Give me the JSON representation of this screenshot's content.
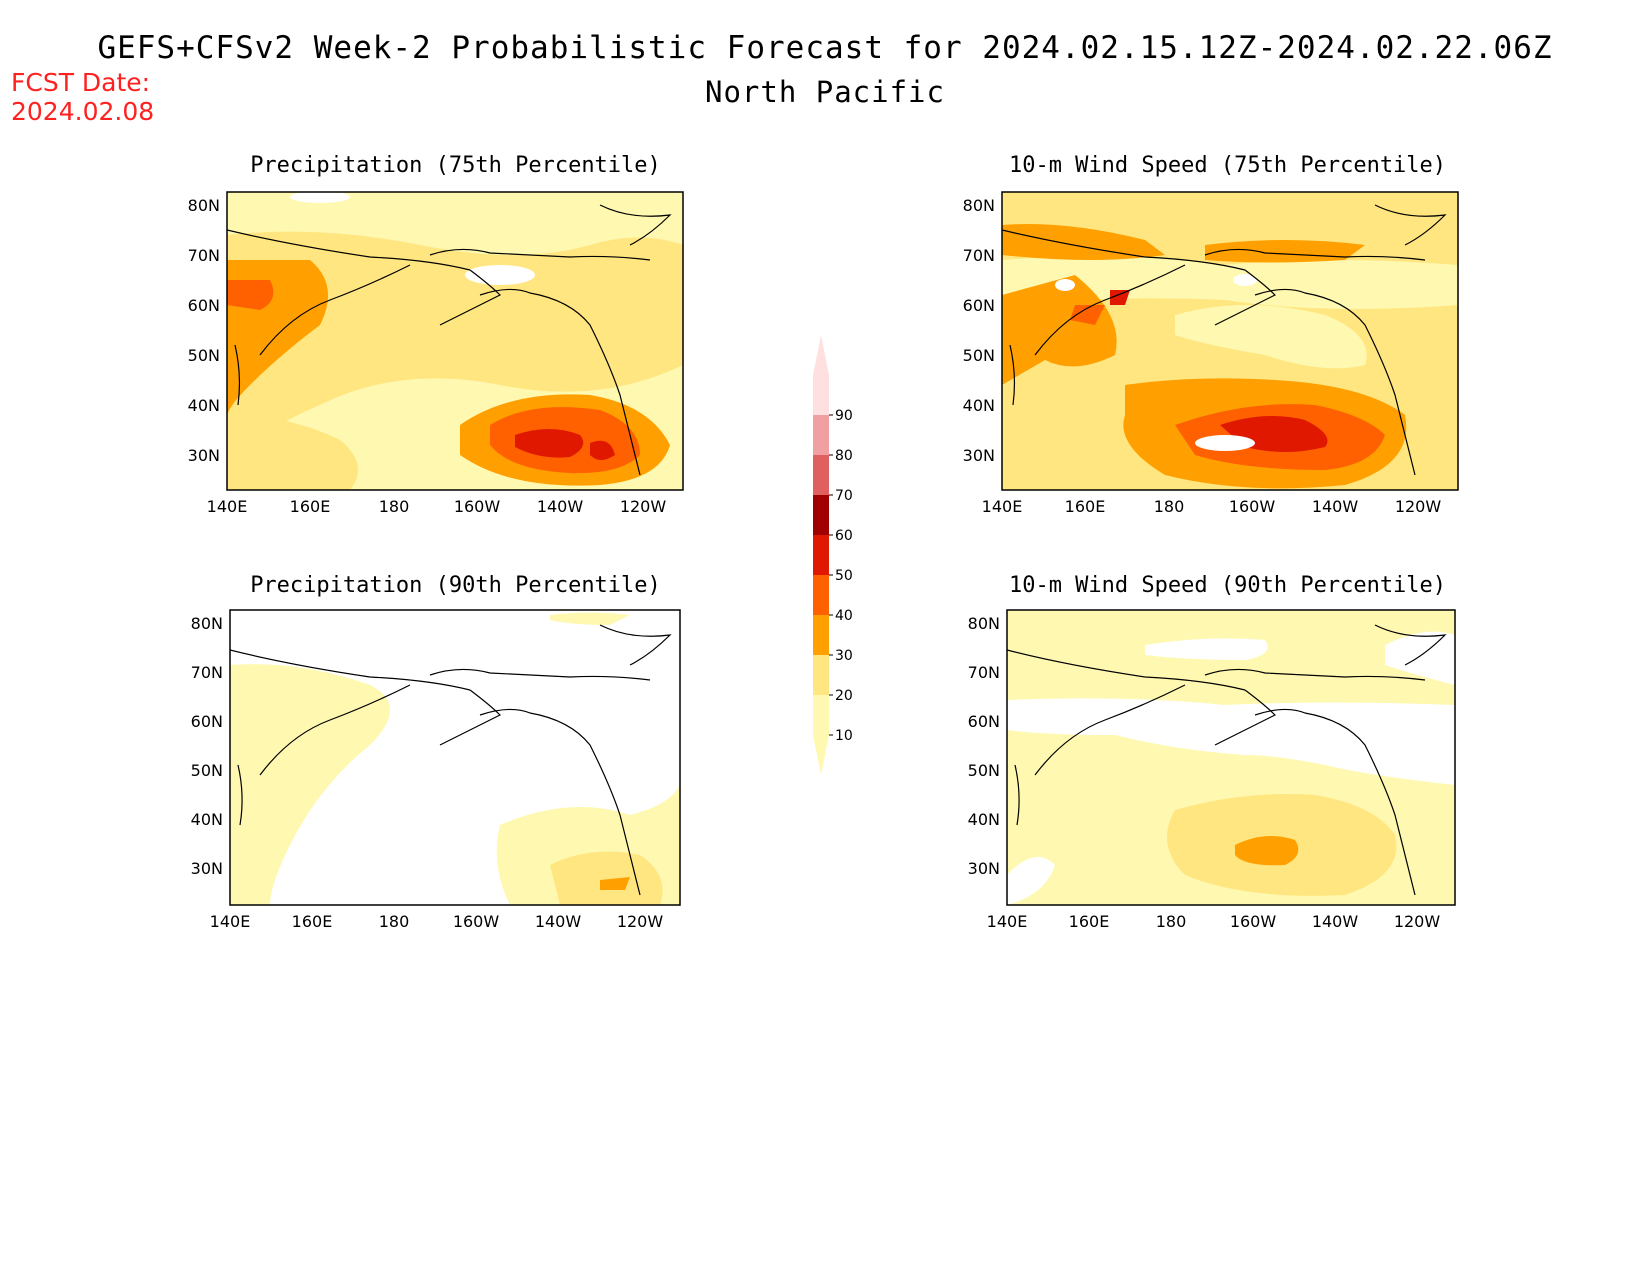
{
  "header": {
    "title": "GEFS+CFSv2 Week-2 Probabilistic Forecast for 2024.02.15.12Z-2024.02.22.06Z",
    "subtitle": "North Pacific",
    "fcst_label": "FCST Date:",
    "fcst_date": "2024.02.08"
  },
  "axes": {
    "lon_labels": [
      "140E",
      "160E",
      "180",
      "160W",
      "140W",
      "120W"
    ],
    "lat_labels": [
      "80N",
      "70N",
      "60N",
      "50N",
      "40N",
      "30N"
    ]
  },
  "panels": [
    {
      "title": "Precipitation (75th Percentile)"
    },
    {
      "title": "10-m Wind Speed (75th Percentile)"
    },
    {
      "title": "Precipitation (90th Percentile)"
    },
    {
      "title": "10-m Wind Speed (90th Percentile)"
    }
  ],
  "colorbar": {
    "levels": [
      "10",
      "20",
      "30",
      "40",
      "50",
      "60",
      "70",
      "80",
      "90"
    ],
    "colors": [
      "#fff8b0",
      "#ffe680",
      "#ffa000",
      "#ff6000",
      "#e01800",
      "#a00000",
      "#e06060",
      "#f0a0a0",
      "#ffe0e0"
    ]
  }
}
